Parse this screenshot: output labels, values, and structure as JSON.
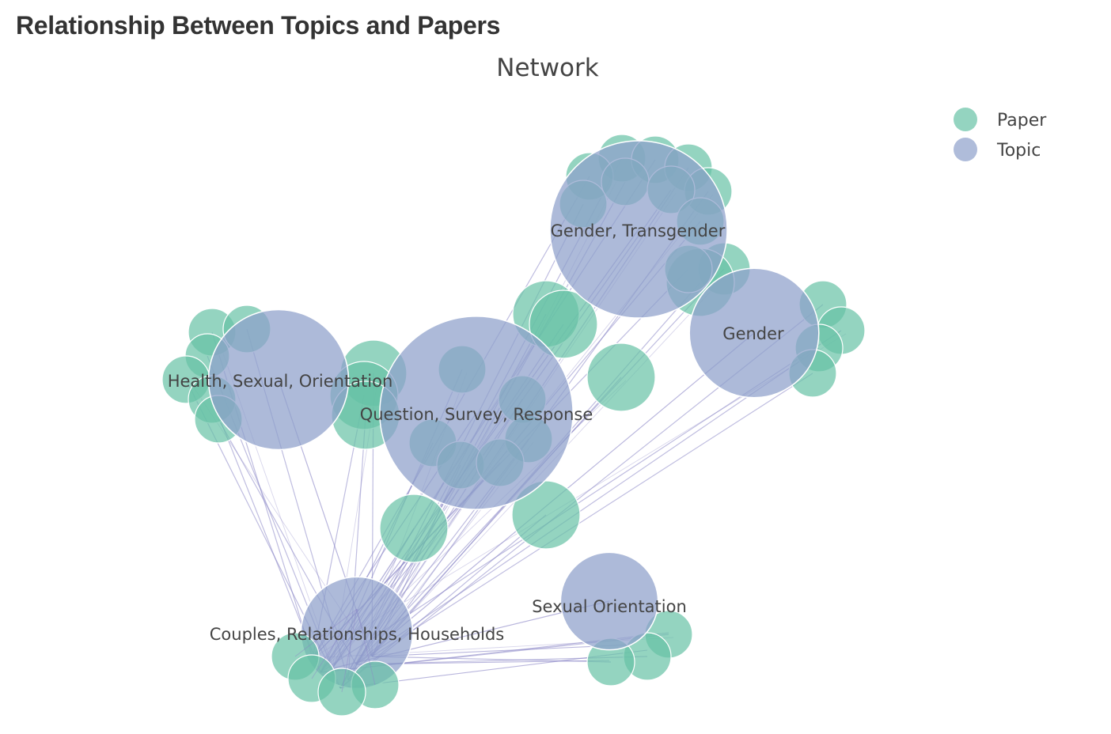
{
  "page": {
    "title": "Relationship Between Topics and Papers"
  },
  "colors": {
    "paper": "#66c2a5",
    "topic": "#8da0cb",
    "edge": "#8b86c7",
    "node_outline": "#ffffff"
  },
  "chart_data": {
    "type": "network",
    "title": "Network",
    "legend": {
      "placement": "top-right",
      "entries": [
        {
          "key": "paper",
          "label": "Paper"
        },
        {
          "key": "topic",
          "label": "Topic"
        }
      ]
    },
    "topics": [
      {
        "id": "t-gender-transgender",
        "label": "Gender, Transgender",
        "size": 1.0
      },
      {
        "id": "t-gender",
        "label": "Gender",
        "size": 0.73
      },
      {
        "id": "t-health",
        "label": "Health, Sexual, Orientation",
        "size": 0.79
      },
      {
        "id": "t-question",
        "label": "Question, Survey, Response",
        "size": 1.09
      },
      {
        "id": "t-couples",
        "label": "Couples, Relationships, Households",
        "size": 0.63
      },
      {
        "id": "t-sexual-orientation",
        "label": "Sexual Orientation",
        "size": 0.55
      }
    ],
    "edge_hub": "t-couples"
  }
}
